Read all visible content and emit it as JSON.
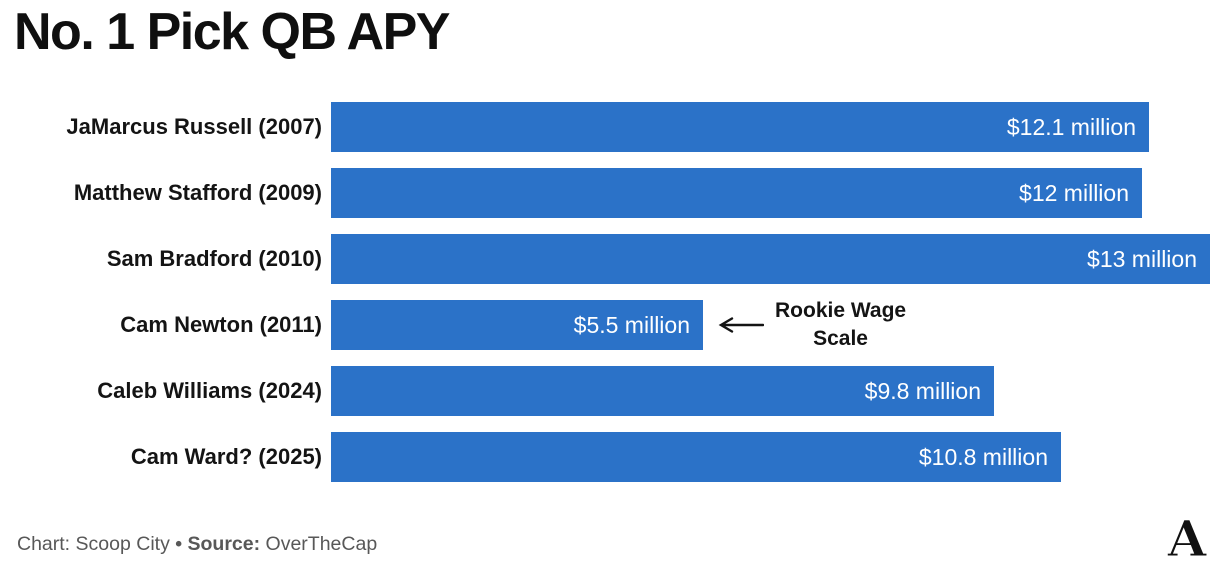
{
  "title": "No. 1 Pick QB APY",
  "chart_data": {
    "type": "bar",
    "orientation": "horizontal",
    "title": "No. 1 Pick QB APY",
    "categories": [
      "JaMarcus Russell (2007)",
      "Matthew Stafford (2009)",
      "Sam Bradford (2010)",
      "Cam Newton (2011)",
      "Caleb Williams (2024)",
      "Cam Ward? (2025)"
    ],
    "values": [
      12.1,
      12,
      13,
      5.5,
      9.8,
      10.8
    ],
    "value_labels": [
      "$12.1 million",
      "$12 million",
      "$13 million",
      "$5.5 million",
      "$9.8 million",
      "$10.8 million"
    ],
    "xlim": [
      0,
      13
    ],
    "grid": false,
    "legend": "none",
    "bar_color": "#2b72c8",
    "annotation": {
      "row_index": 3,
      "text_lines": [
        "Rookie Wage",
        "Scale"
      ],
      "arrow": "left"
    }
  },
  "footer": {
    "chart_credit_label": "Chart:",
    "chart_credit_value": "Scoop City",
    "separator": "•",
    "source_label": "Source:",
    "source_value": "OverTheCap"
  },
  "logo": {
    "letter": "A"
  },
  "colors": {
    "bar": "#2b72c8",
    "title_text": "#0f0f0f",
    "label_text": "#141414",
    "value_text": "#ffffff",
    "footer_text": "#585858"
  }
}
